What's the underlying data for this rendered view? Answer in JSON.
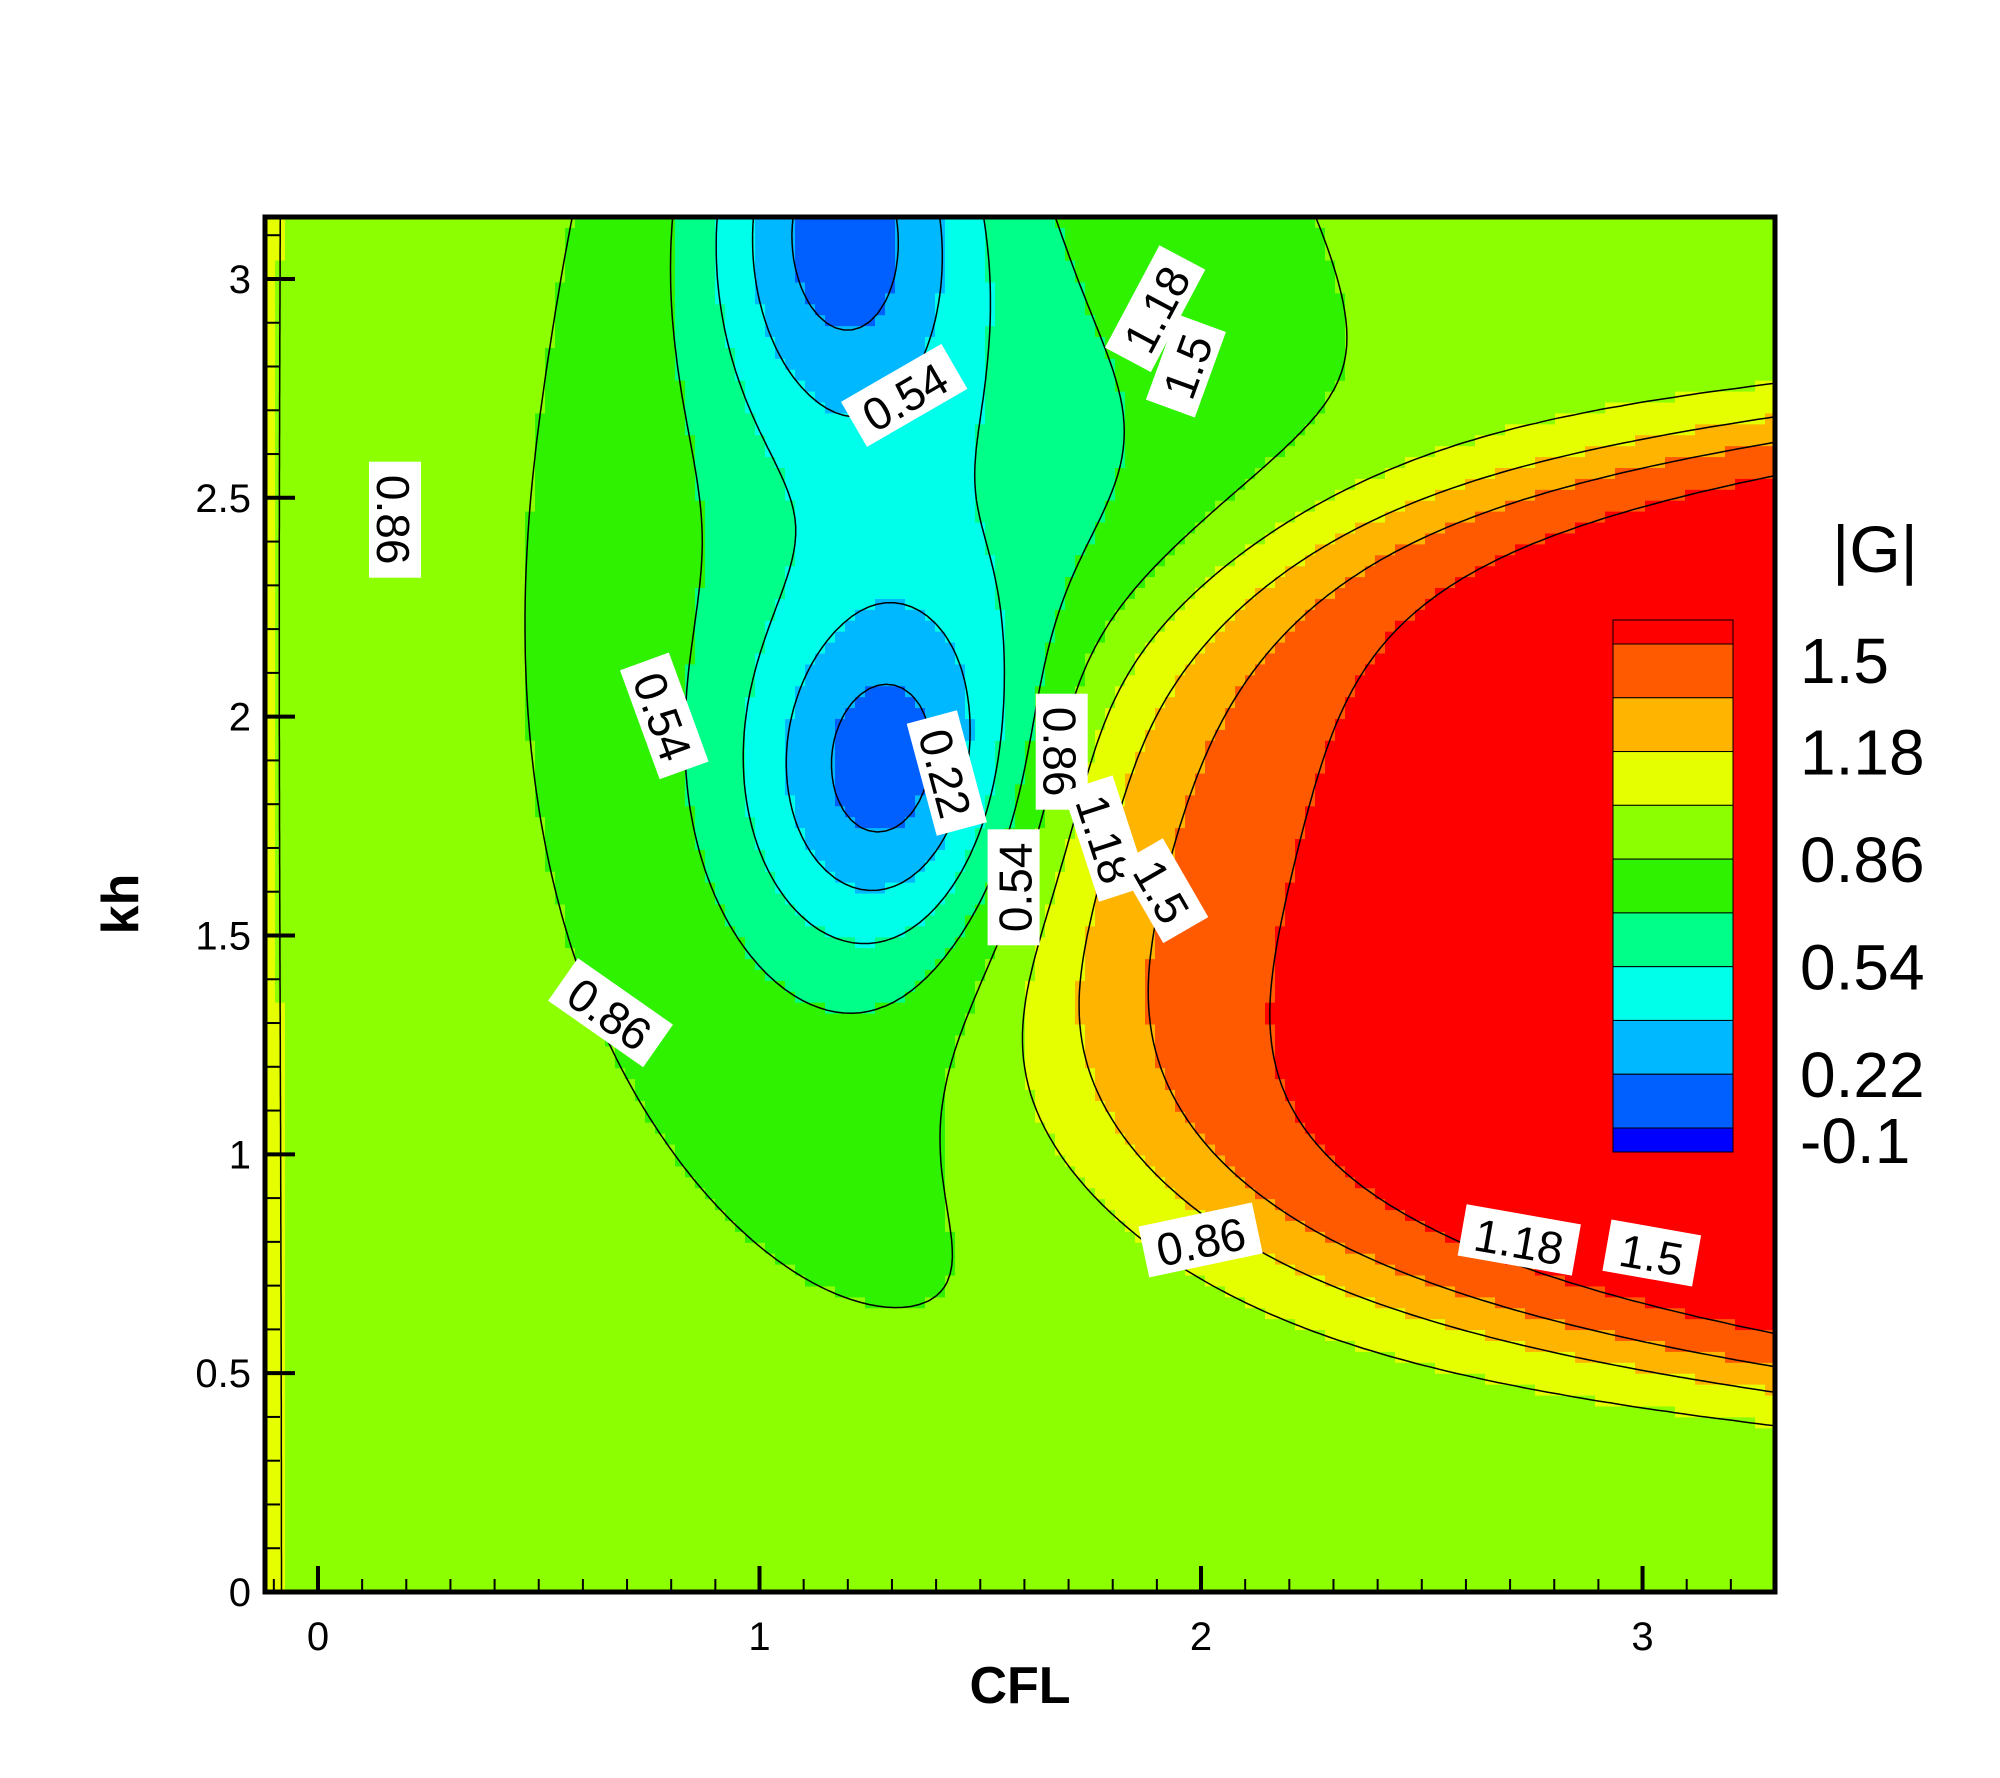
{
  "chart_data": {
    "type": "heatmap",
    "subtype": "filled-contour",
    "xlabel": "CFL",
    "ylabel": "kh",
    "xlim": [
      -0.12,
      3.3
    ],
    "ylim": [
      0,
      3.1416
    ],
    "xticks": [
      0,
      1,
      2,
      3
    ],
    "yticks": [
      0,
      0.5,
      1,
      1.5,
      2,
      2.5,
      3
    ],
    "xtick_labels": [
      "0",
      "1",
      "2",
      "3"
    ],
    "ytick_labels": [
      "0",
      "0.5",
      "1",
      "1.5",
      "2",
      "2.5",
      "3"
    ],
    "colorbar": {
      "title": "|G|",
      "placement": "right",
      "levels": [
        -0.1,
        0.06,
        0.22,
        0.38,
        0.54,
        0.7,
        0.86,
        1.02,
        1.18,
        1.34,
        1.5
      ],
      "tick_values": [
        1.5,
        1.18,
        0.86,
        0.54,
        0.22,
        -0.1
      ],
      "tick_labels": [
        "1.5",
        "1.18",
        "0.86",
        "0.54",
        "0.22",
        "-0.1"
      ],
      "colors": [
        "#0000ff",
        "#0060ff",
        "#00b8ff",
        "#00ffea",
        "#00ff88",
        "#2ef200",
        "#8cff00",
        "#e6ff00",
        "#ffb400",
        "#ff5a00",
        "#ff0000"
      ]
    },
    "contour_labels": [
      {
        "text": "1.18",
        "cfl": 1.9,
        "kh": 2.93,
        "angle": -62
      },
      {
        "text": "1.5",
        "cfl": 1.97,
        "kh": 2.8,
        "angle": -70
      },
      {
        "text": "0.54",
        "cfl": 1.33,
        "kh": 2.73,
        "angle": -30
      },
      {
        "text": "0.86",
        "cfl": 0.17,
        "kh": 2.45,
        "angle": 90
      },
      {
        "text": "0.54",
        "cfl": 0.78,
        "kh": 2.0,
        "angle": 70
      },
      {
        "text": "0.22",
        "cfl": 1.42,
        "kh": 1.87,
        "angle": 75
      },
      {
        "text": "0.86",
        "cfl": 1.68,
        "kh": 1.92,
        "angle": 90
      },
      {
        "text": "1.18",
        "cfl": 1.78,
        "kh": 1.72,
        "angle": 72
      },
      {
        "text": "1.5",
        "cfl": 1.91,
        "kh": 1.6,
        "angle": 60
      },
      {
        "text": "0.54",
        "cfl": 1.58,
        "kh": 1.61,
        "angle": -90
      },
      {
        "text": "0.86",
        "cfl": 0.66,
        "kh": 1.32,
        "angle": 35
      },
      {
        "text": "0.86",
        "cfl": 2.0,
        "kh": 0.8,
        "angle": -12
      },
      {
        "text": "1.18",
        "cfl": 2.72,
        "kh": 0.8,
        "angle": 10
      },
      {
        "text": "1.5",
        "cfl": 3.02,
        "kh": 0.77,
        "angle": 10
      }
    ]
  }
}
